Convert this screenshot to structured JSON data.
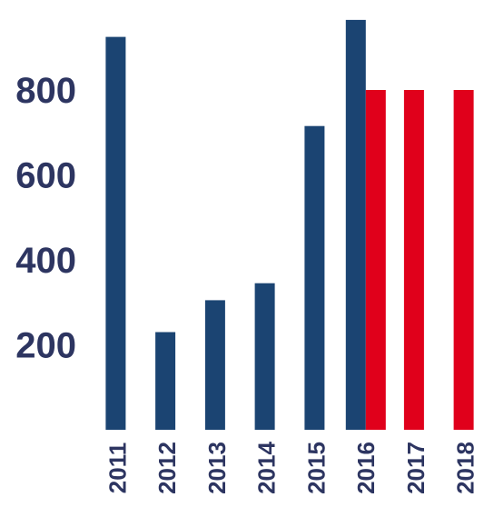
{
  "chart_data": {
    "type": "bar",
    "title": "",
    "xlabel": "",
    "ylabel": "",
    "categories": [
      "2011",
      "2012",
      "2013",
      "2014",
      "2015",
      "2016",
      "2017",
      "2018"
    ],
    "series": [
      {
        "values": [
          925,
          230,
          305,
          345,
          715,
          965,
          null,
          null
        ],
        "color": "#1b4472"
      },
      {
        "values": [
          null,
          null,
          null,
          null,
          null,
          800,
          800,
          800
        ],
        "color": "#e0001b"
      }
    ],
    "yticks": [
      200,
      400,
      600,
      800
    ],
    "ylim": [
      0,
      1000
    ],
    "grid": false,
    "legend": "none",
    "tick_color": "#2d3561"
  }
}
